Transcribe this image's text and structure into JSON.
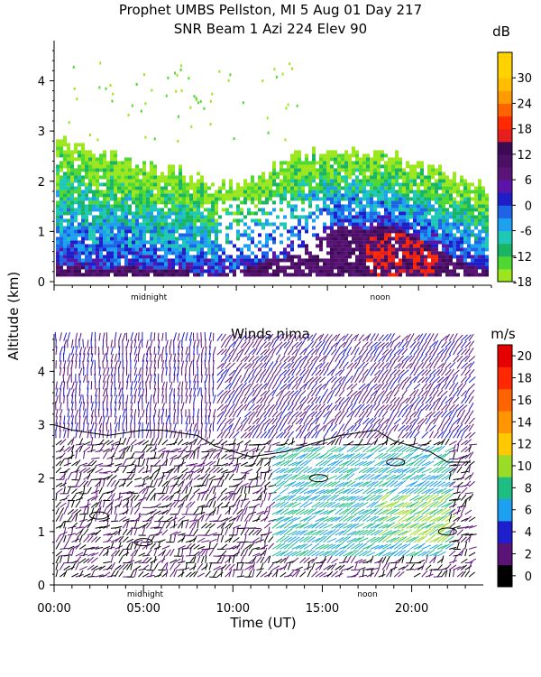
{
  "header": {
    "title_line1": "Prophet  UMBS Pellston, MI    5 Aug 01 Day 217",
    "title_line2": "SNR Beam 1 Azi 224 Elev 90"
  },
  "chart_data": [
    {
      "type": "heatmap",
      "title": "SNR Beam 1 Azi 224 Elev 90",
      "ylabel": "Altitude (km)",
      "ylim": [
        0,
        4.8
      ],
      "xlim": [
        0,
        24
      ],
      "yticks": [
        "0",
        "1",
        "2",
        "3",
        "4"
      ],
      "xmarkers": [
        {
          "label": "midnight",
          "x": 5.2
        },
        {
          "label": "noon",
          "x": 17.9
        }
      ],
      "colorbar": {
        "unit": "dB",
        "tick_labels": [
          "30",
          "24",
          "18",
          "12",
          "6",
          "0",
          "-6",
          "-12",
          "-18"
        ],
        "bins": [
          {
            "lo": -18,
            "hi": -15,
            "color": "#9be61e"
          },
          {
            "lo": -15,
            "hi": -12,
            "color": "#50d832"
          },
          {
            "lo": -12,
            "hi": -9,
            "color": "#19b464"
          },
          {
            "lo": -9,
            "hi": -6,
            "color": "#1ec8b4"
          },
          {
            "lo": -6,
            "hi": -3,
            "color": "#1ea0f0"
          },
          {
            "lo": -3,
            "hi": 0,
            "color": "#1e64e6"
          },
          {
            "lo": 0,
            "hi": 3,
            "color": "#1e1ec8"
          },
          {
            "lo": 3,
            "hi": 6,
            "color": "#5a14aa"
          },
          {
            "lo": 6,
            "hi": 9,
            "color": "#5a1478"
          },
          {
            "lo": 9,
            "hi": 12,
            "color": "#4b0f64"
          },
          {
            "lo": 12,
            "hi": 15,
            "color": "#3c0a55"
          },
          {
            "lo": 15,
            "hi": 18,
            "color": "#e61e1e"
          },
          {
            "lo": 18,
            "hi": 21,
            "color": "#ff2a00"
          },
          {
            "lo": 21,
            "hi": 24,
            "color": "#ff6400"
          },
          {
            "lo": 24,
            "hi": 27,
            "color": "#ff9b00"
          },
          {
            "lo": 27,
            "hi": 30,
            "color": "#ffbe00"
          },
          {
            "lo": 30,
            "hi": 33,
            "color": "#ffd200"
          },
          {
            "lo": 33,
            "hi": 36,
            "color": "#ffd200"
          }
        ]
      },
      "profile": {
        "x": [
          0.2,
          1,
          2,
          3,
          4,
          5,
          6,
          7,
          8,
          9,
          10,
          11,
          12,
          13,
          14,
          15,
          16,
          17,
          18,
          19,
          20,
          21,
          22,
          23.5
        ],
        "top_km": [
          2.8,
          2.7,
          2.6,
          2.5,
          2.4,
          2.3,
          2.2,
          2.1,
          2.0,
          1.9,
          1.9,
          2.0,
          2.2,
          2.4,
          2.5,
          2.6,
          2.5,
          2.6,
          2.5,
          2.4,
          2.3,
          2.2,
          2.0,
          1.9
        ],
        "strong_layer_top_km": [
          0.3,
          0.3,
          0.2,
          0.2,
          0.3,
          0.2,
          0.2,
          0.2,
          0.1,
          0.1,
          0.2,
          0.3,
          0.4,
          0.5,
          0.8,
          1.0,
          1.1,
          1.0,
          1.1,
          1.0,
          0.8,
          0.6,
          0.4,
          0.2
        ]
      }
    },
    {
      "type": "scatter",
      "title": "Winds nima",
      "xlabel": "Time (UT)",
      "ylabel": "Altitude (km)",
      "xlim": [
        0,
        23.5
      ],
      "ylim": [
        0,
        4.7
      ],
      "xtick_labels": [
        "00:00",
        "05:00",
        "10:00",
        "15:00",
        "20:00"
      ],
      "yticks": [
        "0",
        "1",
        "2",
        "3",
        "4"
      ],
      "xmarkers": [
        {
          "label": "midnight",
          "x": 5.2
        },
        {
          "label": "noon",
          "x": 17.9
        }
      ],
      "colorbar": {
        "unit": "m/s",
        "tick_labels": [
          "20",
          "18",
          "16",
          "14",
          "12",
          "10",
          "8",
          "6",
          "4",
          "2",
          "0"
        ],
        "bins": [
          {
            "lo": 0,
            "hi": 2,
            "color": "#000000"
          },
          {
            "lo": 2,
            "hi": 4,
            "color": "#5a1478"
          },
          {
            "lo": 4,
            "hi": 6,
            "color": "#1e1ecd"
          },
          {
            "lo": 6,
            "hi": 8,
            "color": "#1ea0f0"
          },
          {
            "lo": 8,
            "hi": 10,
            "color": "#1ebe82"
          },
          {
            "lo": 10,
            "hi": 12,
            "color": "#9bdc28"
          },
          {
            "lo": 12,
            "hi": 14,
            "color": "#ffc800"
          },
          {
            "lo": 14,
            "hi": 16,
            "color": "#ff9600"
          },
          {
            "lo": 16,
            "hi": 18,
            "color": "#ff6400"
          },
          {
            "lo": 18,
            "hi": 20,
            "color": "#ff2800"
          },
          {
            "lo": 20,
            "hi": 22,
            "color": "#e60000"
          }
        ]
      },
      "contour_top": {
        "x": [
          0,
          1,
          2,
          3,
          4,
          5,
          6,
          7,
          8,
          9,
          10,
          11,
          12,
          13,
          14,
          15,
          16,
          17,
          18,
          19,
          20,
          21,
          22,
          23.3
        ],
        "y_km": [
          3.0,
          2.9,
          2.85,
          2.8,
          2.85,
          2.9,
          2.9,
          2.85,
          2.8,
          2.6,
          2.5,
          2.4,
          2.45,
          2.5,
          2.6,
          2.7,
          2.8,
          2.85,
          2.9,
          2.7,
          2.6,
          2.5,
          2.3,
          2.3
        ]
      }
    }
  ]
}
